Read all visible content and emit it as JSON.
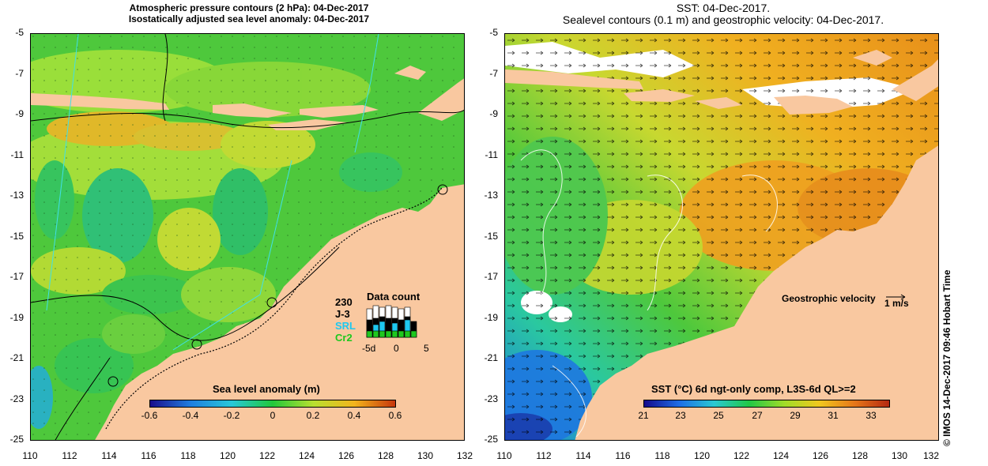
{
  "left_map": {
    "title_line1": "Atmospheric pressure contours (2 hPa): 04-Dec-2017",
    "title_line2": "Isostatically adjusted sea level anomaly: 04-Dec-2017",
    "colorbar": {
      "title": "Sea level anomaly (m)",
      "ticks": [
        "-0.6",
        "-0.4",
        "-0.2",
        "0",
        "0.2",
        "0.4",
        "0.6"
      ],
      "colors": [
        "#1a0d8c",
        "#1f7fe0",
        "#28c8d8",
        "#22c83a",
        "#b8e030",
        "#f2b41c",
        "#c6360c"
      ]
    },
    "data_count": {
      "title": "Data count",
      "max_label": "230",
      "sources": [
        "J-3",
        "SRL",
        "Cr2"
      ],
      "source_colors": [
        "#000000",
        "#1ec8f0",
        "#1ec81e"
      ],
      "x_ticks": [
        "-5d",
        "0",
        "5"
      ]
    }
  },
  "right_map": {
    "title_line1": "SST: 04-Dec-2017.",
    "title_line2": "Sealevel contours (0.1 m) and geostrophic velocity: 04-Dec-2017.",
    "colorbar": {
      "title": "SST (°C) 6d ngt-only comp, L3S-6d QL>=2",
      "ticks": [
        "21",
        "23",
        "25",
        "27",
        "29",
        "31",
        "33"
      ],
      "colors": [
        "#140a8c",
        "#1e6ee6",
        "#2ac8d2",
        "#22c846",
        "#a0dc28",
        "#f0c81e",
        "#e6781a",
        "#b42810"
      ]
    },
    "velocity_label": "Geostrophic velocity",
    "velocity_unit": "1 m/s"
  },
  "axes": {
    "y_ticks": [
      "-5",
      "-7",
      "-9",
      "-11",
      "-13",
      "-15",
      "-17",
      "-19",
      "-21",
      "-23",
      "-25"
    ],
    "x_ticks": [
      "110",
      "112",
      "114",
      "116",
      "118",
      "120",
      "122",
      "124",
      "126",
      "128",
      "130",
      "132"
    ]
  },
  "colors": {
    "land": "#f9c8a0",
    "sea_green": "#4ec83c",
    "sea_light_green": "#9ee03a",
    "sea_teal": "#2fc07a",
    "sst_orange": "#f0a020",
    "sst_yellow": "#e8c828",
    "sst_blue": "#1e78e0"
  },
  "credit": "© IMOS 14-Dec-2017 09:46 Hobart Time"
}
